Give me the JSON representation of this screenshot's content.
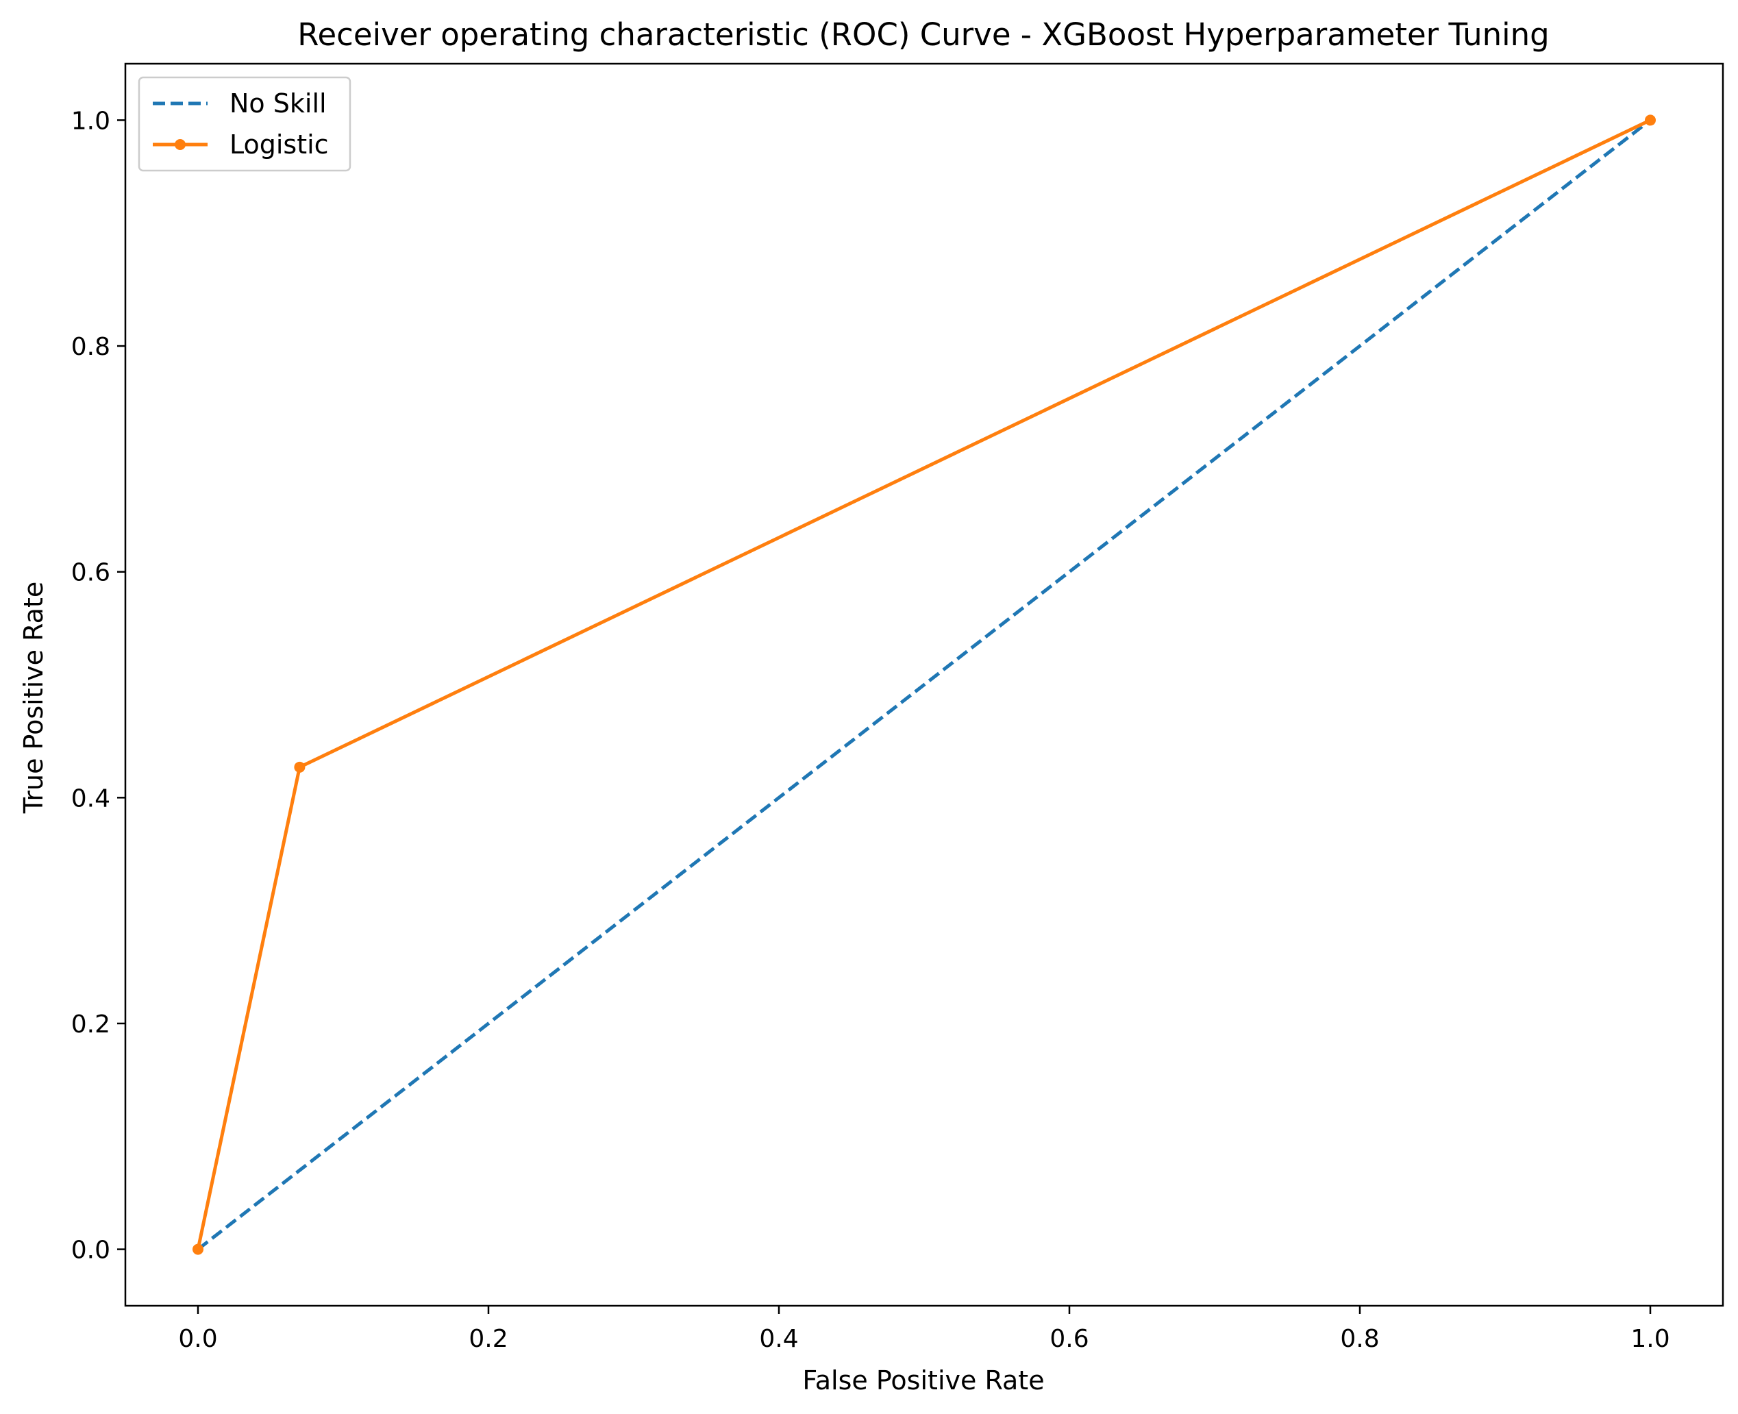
{
  "chart_data": {
    "type": "line",
    "title": "Receiver operating characteristic (ROC) Curve - XGBoost Hyperparameter Tuning",
    "xlabel": "False Positive Rate",
    "ylabel": "True Positive Rate",
    "xlim": [
      -0.05,
      1.05
    ],
    "ylim": [
      -0.05,
      1.05
    ],
    "xticks": [
      0.0,
      0.2,
      0.4,
      0.6,
      0.8,
      1.0
    ],
    "xtick_labels": [
      "0.0",
      "0.2",
      "0.4",
      "0.6",
      "0.8",
      "1.0"
    ],
    "yticks": [
      0.0,
      0.2,
      0.4,
      0.6,
      0.8,
      1.0
    ],
    "ytick_labels": [
      "0.0",
      "0.2",
      "0.4",
      "0.6",
      "0.8",
      "1.0"
    ],
    "grid": false,
    "legend_position": "top-left",
    "series": [
      {
        "name": "No Skill",
        "x": [
          0.0,
          1.0
        ],
        "y": [
          0.0,
          1.0
        ],
        "color": "#1f77b4",
        "line_style": "dashed",
        "markers": false
      },
      {
        "name": "Logistic",
        "x": [
          0.0,
          0.07,
          1.0
        ],
        "y": [
          0.0,
          0.427,
          1.0
        ],
        "color": "#ff7f0e",
        "line_style": "solid",
        "markers": true
      }
    ]
  }
}
